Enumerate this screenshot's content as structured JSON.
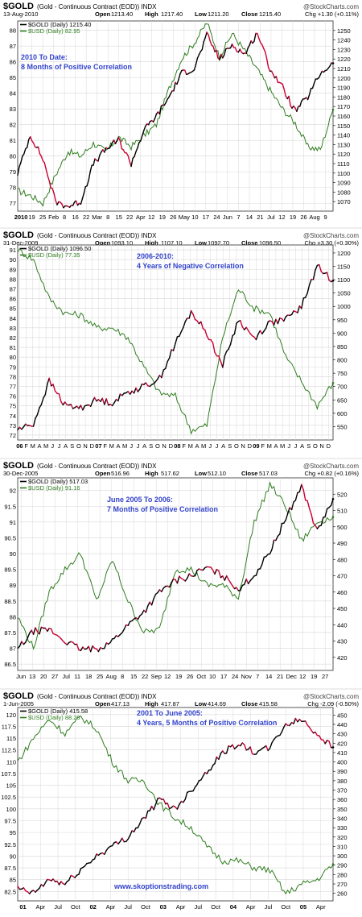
{
  "theme": {
    "gold_color": "#000000",
    "gold_down_color": "#cc0033",
    "usd_color": "#2e7d1e",
    "annotation_color": "#3344cc",
    "grid_color": "#d8d8d8",
    "frame_color": "#555555"
  },
  "watermark": "www.skoptionstrading.com",
  "chart_data": [
    {
      "type": "line",
      "title": "$GOLD",
      "subtitle": "(Gold - Continuous Contract (EOD)) INDX",
      "brand": "@StockCharts.com",
      "date": "13-Aug-2010",
      "quote": {
        "open": "1213.40",
        "high": "1217.40",
        "low": "1211.20",
        "close": "1215.40",
        "chg": "Chg +1.30 (+0.11%)"
      },
      "legend": [
        {
          "label": "$GOLD (Daily) 1215.40",
          "color": "#000000"
        },
        {
          "label": "$USD (Daily) 82.95",
          "color": "#2e7d1e"
        }
      ],
      "annotation_title": "2010 To Date:",
      "annotation_subtitle": "8 Months of Positive Correlation",
      "legend_position": "top-left",
      "grid": true,
      "x_ticks": [
        "2010",
        "19",
        "25",
        "Feb",
        "8",
        "16",
        "22",
        "Mar",
        "8",
        "15",
        "22",
        "Apr",
        "12",
        "19",
        "26",
        "May",
        "10",
        "17",
        "24",
        "Jun",
        "7",
        "14",
        "21",
        "Jul",
        "12",
        "19",
        "26",
        "Aug",
        "9"
      ],
      "left_axis": {
        "min": 76.5,
        "max": 88.6,
        "ticks": [
          77,
          78,
          79,
          80,
          81,
          82,
          83,
          84,
          85,
          86,
          87,
          88
        ]
      },
      "right_axis": {
        "min": 1060,
        "max": 1260,
        "ticks": [
          1070,
          1080,
          1090,
          1100,
          1110,
          1120,
          1130,
          1140,
          1150,
          1160,
          1170,
          1180,
          1190,
          1200,
          1210,
          1220,
          1230,
          1240,
          1250
        ]
      },
      "series": [
        {
          "name": "$USD",
          "axis": "left",
          "x": [
            0,
            0.04,
            0.08,
            0.12,
            0.16,
            0.2,
            0.24,
            0.28,
            0.32,
            0.36,
            0.4,
            0.44,
            0.48,
            0.52,
            0.56,
            0.6,
            0.64,
            0.68,
            0.72,
            0.76,
            0.8,
            0.84,
            0.88,
            0.92,
            0.96,
            1.0
          ],
          "values": [
            77.8,
            77.5,
            77.0,
            78.8,
            80.3,
            80.0,
            80.8,
            80.3,
            81.2,
            80.6,
            81.3,
            82.0,
            84.3,
            86.2,
            87.2,
            88.5,
            86.3,
            87.8,
            86.7,
            85.5,
            84.2,
            83.0,
            82.1,
            80.6,
            80.4,
            82.95
          ]
        },
        {
          "name": "$GOLD",
          "axis": "right",
          "x": [
            0,
            0.04,
            0.08,
            0.12,
            0.16,
            0.2,
            0.24,
            0.28,
            0.32,
            0.36,
            0.4,
            0.44,
            0.48,
            0.52,
            0.56,
            0.6,
            0.64,
            0.68,
            0.72,
            0.76,
            0.8,
            0.84,
            0.88,
            0.92,
            0.96,
            1.0
          ],
          "values": [
            1100,
            1140,
            1115,
            1070,
            1065,
            1070,
            1110,
            1125,
            1135,
            1110,
            1145,
            1160,
            1180,
            1205,
            1210,
            1245,
            1220,
            1235,
            1225,
            1248,
            1210,
            1190,
            1165,
            1180,
            1205,
            1215.4
          ]
        }
      ]
    },
    {
      "type": "line",
      "title": "$GOLD",
      "subtitle": "(Gold - Continuous Contract (EOD)) INDX",
      "brand": "@StockCharts.com",
      "date": "31-Dec-2009",
      "quote": {
        "open": "1093.10",
        "high": "1107.10",
        "low": "1092.70",
        "close": "1096.50",
        "chg": "Chg +3.30 (+0.30%)"
      },
      "legend": [
        {
          "label": "$GOLD (Daily) 1096.50",
          "color": "#000000"
        },
        {
          "label": "$USD (Daily) 77.35",
          "color": "#2e7d1e"
        }
      ],
      "annotation_title": "2006-2010:",
      "annotation_subtitle": "4 Years of Negative Correlation",
      "legend_position": "top-left",
      "grid": true,
      "x_ticks": [
        "06",
        "F",
        "M",
        "A",
        "M",
        "J",
        "J",
        "A",
        "S",
        "O",
        "N",
        "D",
        "07",
        "F",
        "M",
        "A",
        "M",
        "J",
        "J",
        "A",
        "S",
        "O",
        "N",
        "D",
        "08",
        "F",
        "M",
        "A",
        "M",
        "J",
        "J",
        "A",
        "S",
        "O",
        "N",
        "D",
        "09",
        "F",
        "M",
        "A",
        "M",
        "J",
        "J",
        "A",
        "S",
        "O",
        "N",
        "D"
      ],
      "left_axis": {
        "min": 71.5,
        "max": 91.5,
        "ticks": [
          72,
          73,
          74,
          75,
          76,
          77,
          78,
          79,
          80,
          81,
          82,
          83,
          84,
          85,
          86,
          87,
          88,
          89,
          90,
          91
        ]
      },
      "right_axis": {
        "min": 500,
        "max": 1230,
        "ticks": [
          550,
          600,
          650,
          700,
          750,
          800,
          850,
          900,
          950,
          1000,
          1050,
          1100,
          1150,
          1200
        ]
      },
      "series": [
        {
          "name": "$USD",
          "axis": "left",
          "x": [
            0,
            0.05,
            0.1,
            0.15,
            0.2,
            0.25,
            0.3,
            0.35,
            0.4,
            0.45,
            0.5,
            0.55,
            0.6,
            0.65,
            0.7,
            0.75,
            0.8,
            0.85,
            0.9,
            0.95,
            1.0
          ],
          "values": [
            91.0,
            90.0,
            86.0,
            84.5,
            84.3,
            83.0,
            83.0,
            82.0,
            79.0,
            76.3,
            76.0,
            72.5,
            73.0,
            82.0,
            87.0,
            85.0,
            84.5,
            80.0,
            77.5,
            75.0,
            77.35
          ]
        },
        {
          "name": "$GOLD",
          "axis": "right",
          "x": [
            0,
            0.05,
            0.1,
            0.15,
            0.2,
            0.25,
            0.3,
            0.35,
            0.4,
            0.45,
            0.5,
            0.55,
            0.6,
            0.65,
            0.7,
            0.75,
            0.8,
            0.85,
            0.9,
            0.95,
            1.0
          ],
          "values": [
            540,
            560,
            720,
            630,
            620,
            650,
            640,
            680,
            700,
            730,
            860,
            980,
            900,
            780,
            950,
            880,
            940,
            950,
            1000,
            1150,
            1096.5
          ]
        }
      ]
    },
    {
      "type": "line",
      "title": "$GOLD",
      "subtitle": "(Gold - Continuous Contract (EOD)) INDX",
      "brand": "@StockCharts.com",
      "date": "30-Dec-2005",
      "quote": {
        "open": "516.96",
        "high": "517.62",
        "low": "512.10",
        "close": "517.03",
        "chg": "Chg +0.82 (+0.16%)"
      },
      "legend": [
        {
          "label": "$GOLD (Daily) 517.03",
          "color": "#000000"
        },
        {
          "label": "$USD (Daily) 91.16",
          "color": "#2e7d1e"
        }
      ],
      "annotation_title": "June 2005 To 2006:",
      "annotation_subtitle": "7 Months of Positive Correlation",
      "legend_position": "top-left",
      "grid": true,
      "x_ticks": [
        "Jun",
        "13",
        "20",
        "27",
        "Jul",
        "11",
        "18",
        "25",
        "Aug",
        "8",
        "15",
        "22",
        "Sep",
        "12",
        "19",
        "26",
        "Oct",
        "10",
        "17",
        "24",
        "Nov",
        "7",
        "14",
        "21",
        "Dec",
        "12",
        "19",
        "27"
      ],
      "left_axis": {
        "min": 86.3,
        "max": 92.4,
        "ticks": [
          86.5,
          87.0,
          87.5,
          88.0,
          88.5,
          89.0,
          89.5,
          90.0,
          90.5,
          91.0,
          91.5,
          92.0
        ]
      },
      "right_axis": {
        "min": 412,
        "max": 530,
        "ticks": [
          420,
          430,
          440,
          450,
          460,
          470,
          480,
          490,
          500,
          510,
          520
        ]
      },
      "series": [
        {
          "name": "$USD",
          "axis": "left",
          "x": [
            0,
            0.05,
            0.1,
            0.15,
            0.2,
            0.25,
            0.3,
            0.35,
            0.4,
            0.45,
            0.5,
            0.55,
            0.6,
            0.65,
            0.7,
            0.75,
            0.8,
            0.85,
            0.9,
            0.95,
            1.0
          ],
          "values": [
            88.0,
            87.0,
            88.8,
            89.5,
            90.0,
            88.5,
            89.8,
            88.5,
            87.5,
            87.6,
            89.5,
            89.5,
            89.0,
            89.0,
            88.6,
            91.0,
            92.2,
            91.5,
            90.4,
            91.0,
            91.16
          ]
        },
        {
          "name": "$GOLD",
          "axis": "right",
          "x": [
            0,
            0.05,
            0.1,
            0.15,
            0.2,
            0.25,
            0.3,
            0.35,
            0.4,
            0.45,
            0.5,
            0.55,
            0.6,
            0.65,
            0.7,
            0.75,
            0.8,
            0.85,
            0.9,
            0.95,
            1.0
          ],
          "values": [
            425,
            436,
            437,
            430,
            425,
            425,
            430,
            440,
            448,
            460,
            467,
            470,
            475,
            470,
            462,
            470,
            485,
            505,
            525,
            497,
            517.03
          ]
        }
      ]
    },
    {
      "type": "line",
      "title": "$GOLD",
      "subtitle": "(Gold - Continuous Contract (EOD)) INDX",
      "brand": "@StockCharts.com",
      "date": "1-Jun-2005",
      "quote": {
        "open": "417.13",
        "high": "417.87",
        "low": "414.69",
        "close": "415.58",
        "chg": "Chg -2.09 (-0.50%)"
      },
      "legend": [
        {
          "label": "$GOLD (Daily) 415.58",
          "color": "#000000"
        },
        {
          "label": "$USD (Daily) 88.26",
          "color": "#2e7d1e"
        }
      ],
      "annotation_title": "2001 To June 2005:",
      "annotation_subtitle": "4 Years, 5 Months of Positive Correlation",
      "legend_position": "top-left",
      "grid": true,
      "x_ticks": [
        "01",
        "Apr",
        "Jul",
        "Oct",
        "02",
        "Apr",
        "Jul",
        "Oct",
        "03",
        "Apr",
        "Jul",
        "Oct",
        "04",
        "Apr",
        "Jul",
        "Oct",
        "05",
        "Apr"
      ],
      "left_axis": {
        "min": 80.5,
        "max": 121.5,
        "ticks": [
          82.5,
          85.0,
          87.5,
          90.0,
          92.5,
          95.0,
          97.5,
          100.0,
          102.5,
          105.0,
          107.5,
          110.0,
          112.5,
          115.0,
          117.5,
          120.0
        ]
      },
      "right_axis": {
        "min": 252,
        "max": 458,
        "ticks": [
          260,
          270,
          280,
          290,
          300,
          310,
          320,
          330,
          340,
          350,
          360,
          370,
          380,
          390,
          400,
          410,
          420,
          430,
          440,
          450
        ]
      },
      "series": [
        {
          "name": "$USD",
          "axis": "left",
          "x": [
            0,
            0.05,
            0.1,
            0.15,
            0.2,
            0.25,
            0.3,
            0.35,
            0.4,
            0.45,
            0.5,
            0.55,
            0.6,
            0.65,
            0.7,
            0.75,
            0.8,
            0.85,
            0.9,
            0.95,
            1.0
          ],
          "values": [
            110.0,
            115.0,
            119.0,
            116.0,
            119.5,
            117.0,
            110.0,
            106.0,
            106.0,
            101.0,
            98.0,
            96.0,
            92.0,
            89.0,
            89.0,
            87.5,
            87.0,
            82.0,
            84.0,
            85.0,
            88.26
          ]
        },
        {
          "name": "$GOLD",
          "axis": "right",
          "x": [
            0,
            0.05,
            0.1,
            0.15,
            0.2,
            0.25,
            0.3,
            0.35,
            0.4,
            0.45,
            0.5,
            0.55,
            0.6,
            0.65,
            0.7,
            0.75,
            0.8,
            0.85,
            0.9,
            0.95,
            1.0
          ],
          "values": [
            265,
            260,
            275,
            270,
            285,
            300,
            310,
            320,
            340,
            360,
            350,
            370,
            390,
            410,
            420,
            410,
            415,
            440,
            445,
            430,
            415.58
          ]
        }
      ]
    }
  ]
}
